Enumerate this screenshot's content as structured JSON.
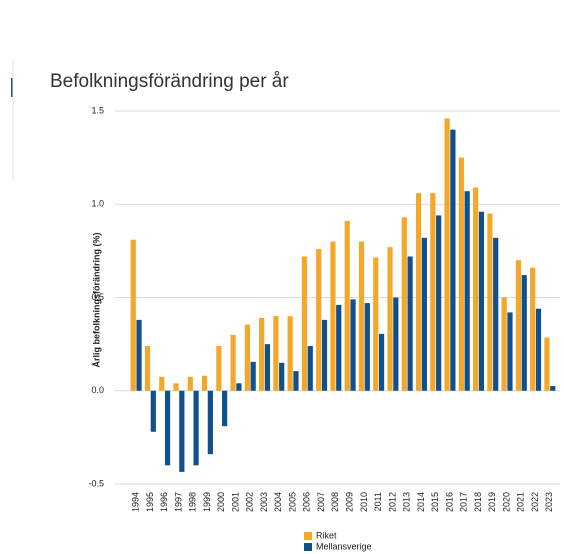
{
  "chart_data": {
    "type": "bar",
    "title": "Befolkningsförändring per år",
    "y_label": "Årlig befolkningsförändring (%)",
    "categories": [
      "1994",
      "1995",
      "1996",
      "1997",
      "1998",
      "1999",
      "2000",
      "2001",
      "2002",
      "2003",
      "2004",
      "2005",
      "2006",
      "2007",
      "2008",
      "2009",
      "2010",
      "2011",
      "2012",
      "2013",
      "2014",
      "2015",
      "2016",
      "2017",
      "2018",
      "2019",
      "2020",
      "2021",
      "2022",
      "2023"
    ],
    "series": [
      {
        "name": "Riket",
        "color": "#f4a82a",
        "values": [
          0.81,
          0.24,
          0.075,
          0.04,
          0.075,
          0.08,
          0.24,
          0.3,
          0.355,
          0.39,
          0.4,
          0.4,
          0.72,
          0.76,
          0.8,
          0.91,
          0.8,
          0.715,
          0.77,
          0.93,
          1.06,
          1.06,
          1.46,
          1.25,
          1.09,
          0.95,
          0.5,
          0.7,
          0.66,
          0.285
        ]
      },
      {
        "name": "Mellansverige",
        "color": "#10508c",
        "values": [
          0.38,
          -0.22,
          -0.4,
          -0.435,
          -0.4,
          -0.34,
          -0.19,
          0.04,
          0.155,
          0.25,
          0.15,
          0.105,
          0.24,
          0.38,
          0.46,
          0.49,
          0.47,
          0.305,
          0.5,
          0.72,
          0.82,
          0.94,
          1.4,
          1.07,
          0.96,
          0.82,
          0.42,
          0.62,
          0.44,
          0.025
        ]
      }
    ],
    "ylim": [
      -0.5,
      1.5
    ],
    "yticks": [
      -0.5,
      0.5,
      {
        "value": 0,
        "label": "0.0"
      },
      {
        "value": 1,
        "label": "1.0"
      },
      1.5
    ],
    "grid": true
  }
}
